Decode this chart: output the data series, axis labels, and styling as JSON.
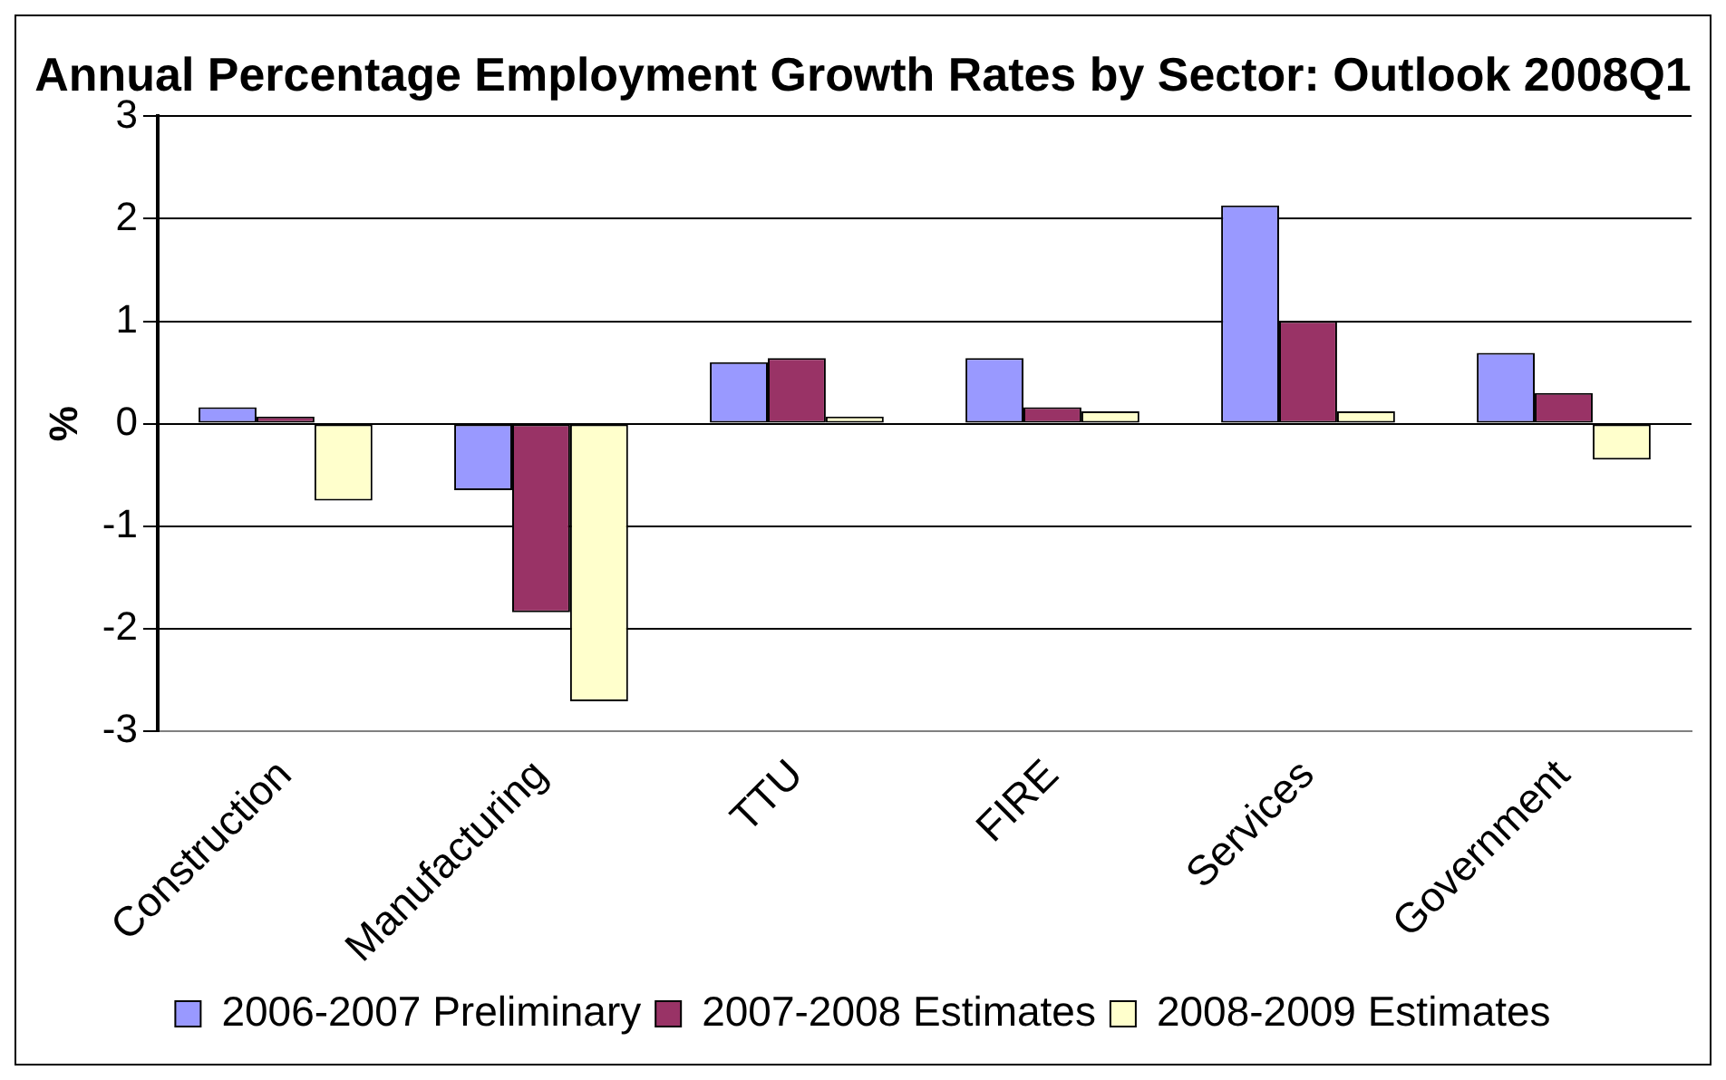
{
  "chart_data": {
    "type": "bar",
    "title": "Annual Percentage Employment Growth Rates by Sector: Outlook 2008Q1",
    "ylabel": "%",
    "categories": [
      "Construction",
      "Manufacturing",
      "TTU",
      "FIRE",
      "Services",
      "Government"
    ],
    "series": [
      {
        "name": "2006-2007 Preliminary",
        "color": "#9999ff",
        "values": [
          0.16,
          -0.65,
          0.6,
          0.64,
          2.13,
          0.69
        ]
      },
      {
        "name": "2007-2008 Estimates",
        "color": "#993366",
        "values": [
          0.07,
          -1.84,
          0.64,
          0.16,
          1.0,
          0.3
        ]
      },
      {
        "name": "2008-2009 Estimates",
        "color": "#ffffcc",
        "values": [
          -0.75,
          -2.71,
          0.07,
          0.12,
          0.12,
          -0.35
        ]
      }
    ],
    "ylim": [
      -3,
      3
    ],
    "yticks": [
      -3,
      -2,
      -1,
      0,
      1,
      2,
      3
    ],
    "grid": "y",
    "legend": "bottom"
  }
}
